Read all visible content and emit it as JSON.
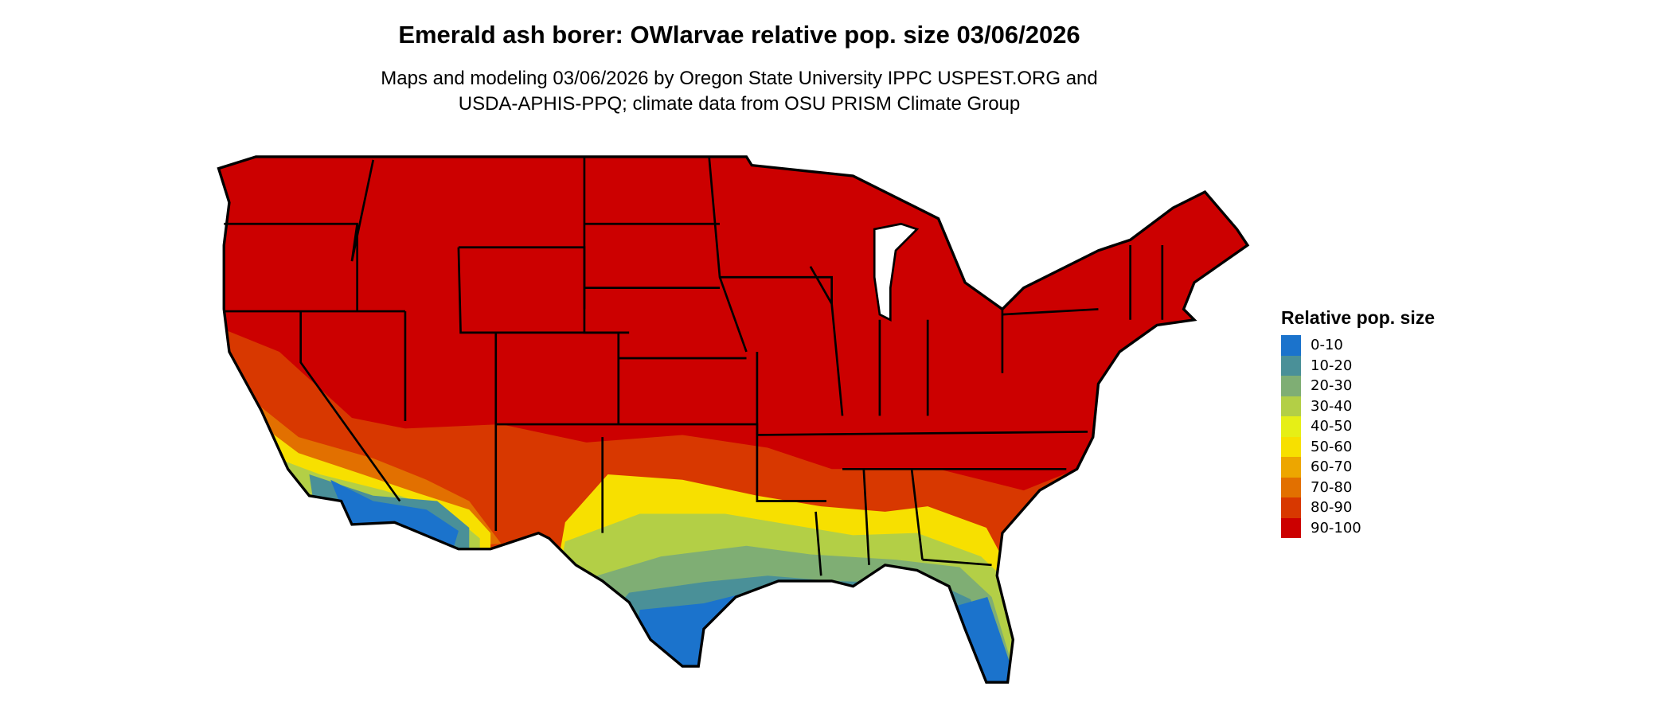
{
  "title": "Emerald ash borer: OWlarvae relative pop. size 03/06/2026",
  "subtitle_line1": "Maps and modeling 03/06/2026 by Oregon State University IPPC USPEST.ORG and",
  "subtitle_line2": "USDA-APHIS-PPQ; climate data from OSU PRISM Climate Group",
  "legend": {
    "title": "Relative pop. size",
    "items": [
      {
        "label": "0-10",
        "color": "#1b73cc"
      },
      {
        "label": "10-20",
        "color": "#4a9098"
      },
      {
        "label": "20-30",
        "color": "#7fae74"
      },
      {
        "label": "30-40",
        "color": "#b3cf46"
      },
      {
        "label": "40-50",
        "color": "#e6ef16"
      },
      {
        "label": "50-60",
        "color": "#f7e000"
      },
      {
        "label": "60-70",
        "color": "#eda600"
      },
      {
        "label": "70-80",
        "color": "#e27000"
      },
      {
        "label": "80-90",
        "color": "#d83800"
      },
      {
        "label": "90-100",
        "color": "#cc0000"
      }
    ]
  }
}
